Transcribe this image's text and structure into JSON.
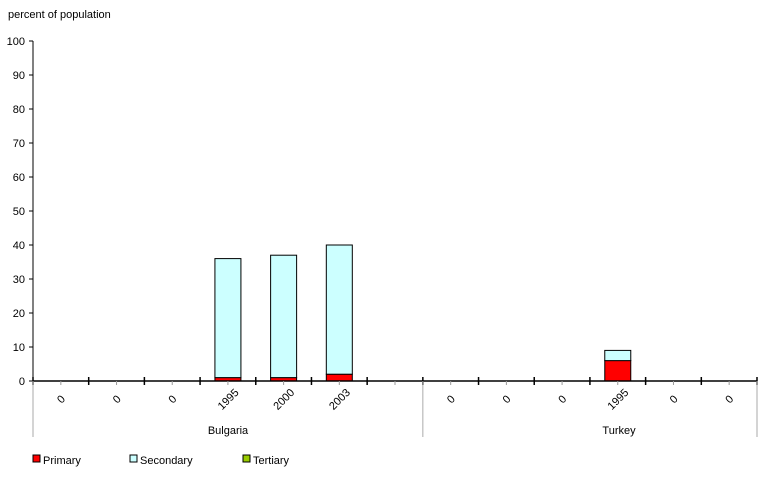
{
  "chart_data": {
    "type": "bar",
    "stacked": true,
    "ylabel": "percent of population",
    "ylim": [
      0,
      100
    ],
    "yticks": [
      0,
      10,
      20,
      30,
      40,
      50,
      60,
      70,
      80,
      90,
      100
    ],
    "groups": [
      {
        "name": "Bulgaria",
        "categories": [
          "0",
          "0",
          "0",
          "1995",
          "2000",
          "2003",
          ""
        ]
      },
      {
        "name": "Turkey",
        "categories": [
          "0",
          "0",
          "0",
          "1995",
          "0",
          "0"
        ]
      }
    ],
    "series": [
      {
        "name": "Primary",
        "color": "#ff0000",
        "values": [
          0,
          0,
          0,
          1,
          1,
          2,
          0,
          0,
          0,
          0,
          6,
          0,
          0
        ]
      },
      {
        "name": "Secondary",
        "color": "#ccffff",
        "values": [
          0,
          0,
          0,
          35,
          36,
          38,
          0,
          0,
          0,
          0,
          3,
          0,
          0
        ]
      },
      {
        "name": "Tertiary",
        "color": "#99cc00",
        "values": [
          0,
          0,
          0,
          0,
          0,
          0,
          0,
          0,
          0,
          0,
          0,
          0,
          0
        ]
      }
    ],
    "legend": "bottom-left"
  }
}
